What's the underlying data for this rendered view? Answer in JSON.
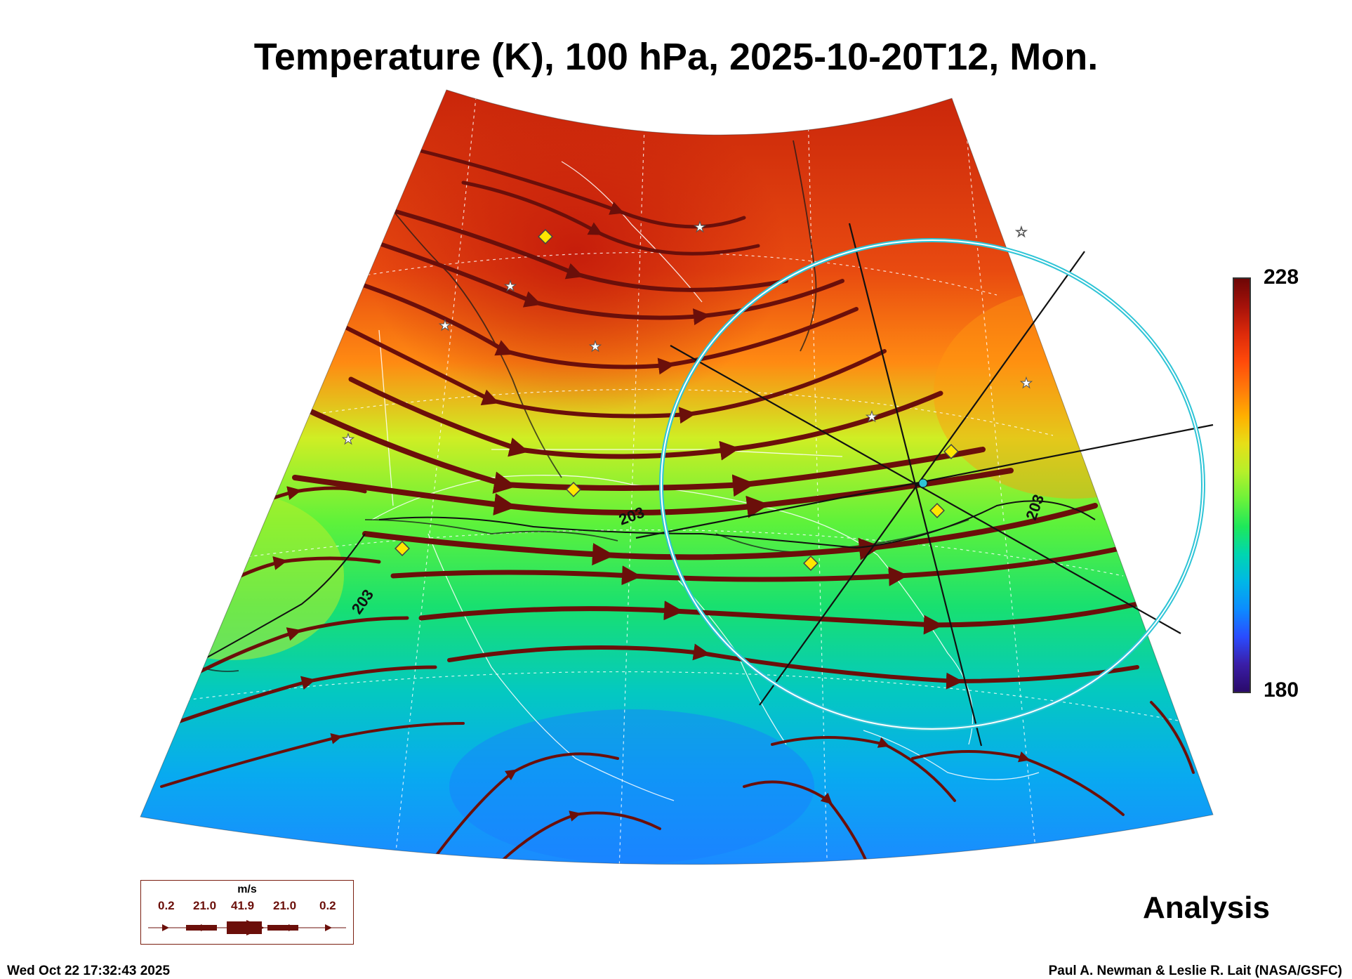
{
  "title": "Temperature (K), 100 hPa, 2025-10-20T12, Mon.",
  "colorbar": {
    "max_label": "228",
    "min_label": "180",
    "colors": [
      "#2a0a6a",
      "#3a1ea8",
      "#2a4cff",
      "#0c8cff",
      "#00b7e6",
      "#00d6b0",
      "#1ee85a",
      "#6cf23a",
      "#b6f02a",
      "#e6df18",
      "#ffb000",
      "#ff7a0a",
      "#ff4a0a",
      "#dd2a0a",
      "#a5120a",
      "#6e0606"
    ]
  },
  "contour_label": "203",
  "panel_label": "Analysis",
  "legend": {
    "unit": "m/s",
    "values": [
      "0.2",
      "21.0",
      "41.9",
      "21.0",
      "0.2"
    ]
  },
  "timestamp": "Wed Oct 22 17:32:43 2025",
  "credit": "Paul A. Newman & Leslie R. Lait (NASA/GSFC)",
  "colors": {
    "streamline": "#6b0f0a",
    "ring": "#2ec4d6",
    "marker": "#ffe600"
  }
}
